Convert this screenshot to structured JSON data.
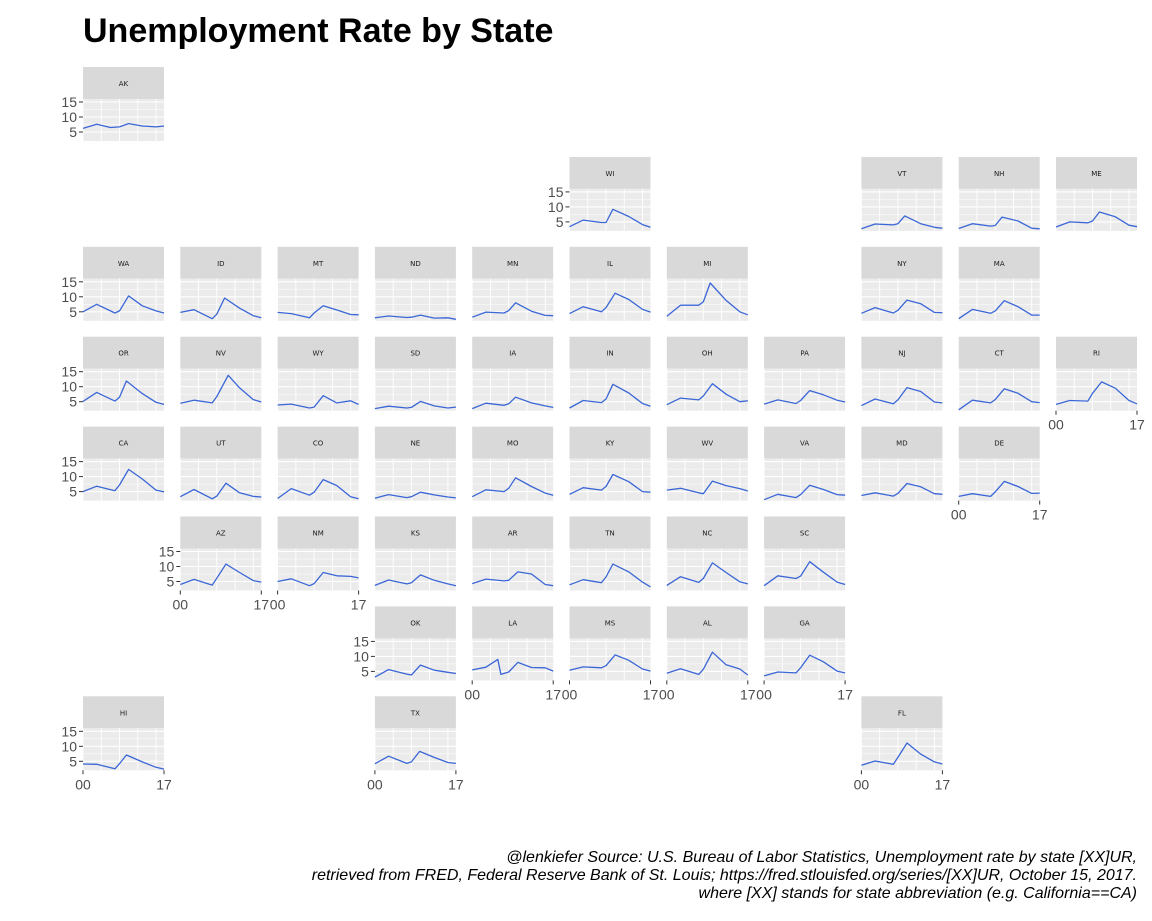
{
  "chart_data": {
    "type": "line",
    "title": "Unemployment Rate by State",
    "subtitle": "",
    "xlabel": "",
    "ylabel": "",
    "facet_layout": "geofacet state grid",
    "x_ticks": [
      "00",
      "17"
    ],
    "x_range": [
      2000,
      2017.75
    ],
    "y_ticks": [
      5,
      10,
      15
    ],
    "y_range": [
      2,
      16
    ],
    "grid": true,
    "legend": "none",
    "colors": {
      "line": "#3a66d6",
      "panel_bg": "#ebebeb",
      "strip_bg": "#d9d9d9",
      "grid": "#ffffff",
      "tick_text": "#4d4d4d"
    },
    "states": [
      {
        "abbr": "AK",
        "x": [
          2000,
          2003,
          2006,
          2008,
          2010,
          2013,
          2016,
          2017.75
        ],
        "y": [
          6.2,
          7.6,
          6.5,
          6.7,
          7.8,
          7.0,
          6.7,
          7.0
        ]
      },
      {
        "abbr": "WI",
        "x": [
          2000,
          2003,
          2007,
          2008,
          2009.5,
          2013,
          2016,
          2017.75
        ],
        "y": [
          3.4,
          5.6,
          4.8,
          4.8,
          9.2,
          6.8,
          4.1,
          3.2
        ]
      },
      {
        "abbr": "VT",
        "x": [
          2000,
          2003,
          2007,
          2008,
          2009.5,
          2013,
          2016,
          2017.75
        ],
        "y": [
          2.7,
          4.3,
          4.0,
          4.4,
          7.0,
          4.4,
          3.2,
          2.9
        ]
      },
      {
        "abbr": "NH",
        "x": [
          2000,
          2003,
          2007,
          2008,
          2009.5,
          2013,
          2016,
          2017.75
        ],
        "y": [
          2.8,
          4.4,
          3.6,
          3.8,
          6.6,
          5.3,
          2.9,
          2.7
        ]
      },
      {
        "abbr": "ME",
        "x": [
          2000,
          2003,
          2007,
          2008,
          2009.5,
          2013,
          2016,
          2017.75
        ],
        "y": [
          3.3,
          5.0,
          4.7,
          5.3,
          8.3,
          6.7,
          3.9,
          3.4
        ]
      },
      {
        "abbr": "WA",
        "x": [
          2000,
          2003,
          2007,
          2008,
          2010,
          2013,
          2016,
          2017.75
        ],
        "y": [
          5.0,
          7.5,
          4.6,
          5.3,
          10.3,
          7.0,
          5.3,
          4.6
        ]
      },
      {
        "abbr": "ID",
        "x": [
          2000,
          2003,
          2007,
          2008,
          2009.7,
          2013,
          2016,
          2017.75
        ],
        "y": [
          4.8,
          5.7,
          2.7,
          4.2,
          9.6,
          6.2,
          3.7,
          3.0
        ]
      },
      {
        "abbr": "MT",
        "x": [
          2000,
          2003,
          2007,
          2008,
          2010,
          2013,
          2016,
          2017.75
        ],
        "y": [
          4.8,
          4.4,
          3.0,
          4.6,
          7.0,
          5.6,
          4.1,
          4.0
        ]
      },
      {
        "abbr": "ND",
        "x": [
          2000,
          2003,
          2007,
          2008,
          2010,
          2013,
          2016,
          2017.75
        ],
        "y": [
          3.0,
          3.6,
          3.1,
          3.2,
          3.9,
          2.9,
          3.0,
          2.5
        ]
      },
      {
        "abbr": "MN",
        "x": [
          2000,
          2003,
          2007,
          2008,
          2009.5,
          2013,
          2016,
          2017.75
        ],
        "y": [
          3.2,
          4.9,
          4.6,
          5.4,
          8.0,
          5.2,
          3.8,
          3.7
        ]
      },
      {
        "abbr": "IL",
        "x": [
          2000,
          2003,
          2007,
          2008,
          2010,
          2013,
          2016,
          2017.75
        ],
        "y": [
          4.4,
          6.7,
          5.0,
          6.4,
          11.2,
          9.1,
          5.8,
          4.9
        ]
      },
      {
        "abbr": "MI",
        "x": [
          2000,
          2003,
          2007,
          2008,
          2009.5,
          2013,
          2016,
          2017.75
        ],
        "y": [
          3.5,
          7.2,
          7.2,
          8.3,
          14.6,
          8.8,
          5.0,
          4.0
        ]
      },
      {
        "abbr": "NY",
        "x": [
          2000,
          2003,
          2007,
          2008,
          2010,
          2013,
          2016,
          2017.75
        ],
        "y": [
          4.5,
          6.4,
          4.6,
          5.5,
          8.9,
          7.7,
          4.8,
          4.7
        ]
      },
      {
        "abbr": "MA",
        "x": [
          2000,
          2003,
          2007,
          2008,
          2010,
          2013,
          2016,
          2017.75
        ],
        "y": [
          2.7,
          5.8,
          4.5,
          5.3,
          8.7,
          6.7,
          3.9,
          3.9
        ]
      },
      {
        "abbr": "OR",
        "x": [
          2000,
          2003,
          2007,
          2008,
          2009.5,
          2013,
          2016,
          2017.75
        ],
        "y": [
          5.1,
          8.1,
          5.2,
          6.5,
          11.9,
          7.7,
          4.8,
          4.1
        ]
      },
      {
        "abbr": "NV",
        "x": [
          2000,
          2003,
          2007,
          2008,
          2010.5,
          2013,
          2016,
          2017.75
        ],
        "y": [
          4.5,
          5.5,
          4.6,
          6.7,
          13.8,
          9.6,
          5.7,
          4.9
        ]
      },
      {
        "abbr": "WY",
        "x": [
          2000,
          2003,
          2007,
          2008,
          2010,
          2013,
          2016,
          2017.75
        ],
        "y": [
          3.9,
          4.2,
          2.9,
          3.2,
          7.0,
          4.6,
          5.3,
          4.1
        ]
      },
      {
        "abbr": "SD",
        "x": [
          2000,
          2003,
          2007,
          2008,
          2010,
          2013,
          2016,
          2017.75
        ],
        "y": [
          2.7,
          3.5,
          2.9,
          3.1,
          5.1,
          3.6,
          2.9,
          3.2
        ]
      },
      {
        "abbr": "IA",
        "x": [
          2000,
          2003,
          2007,
          2008,
          2009.5,
          2013,
          2016,
          2017.75
        ],
        "y": [
          2.7,
          4.5,
          3.8,
          4.3,
          6.5,
          4.6,
          3.6,
          3.1
        ]
      },
      {
        "abbr": "IN",
        "x": [
          2000,
          2003,
          2007,
          2008,
          2009.5,
          2013,
          2016,
          2017.75
        ],
        "y": [
          2.9,
          5.4,
          4.7,
          5.9,
          10.8,
          7.9,
          4.4,
          3.5
        ]
      },
      {
        "abbr": "OH",
        "x": [
          2000,
          2003,
          2007,
          2008,
          2010,
          2013,
          2016,
          2017.75
        ],
        "y": [
          4.0,
          6.2,
          5.6,
          6.9,
          11.0,
          7.5,
          5.0,
          5.3
        ]
      },
      {
        "abbr": "PA",
        "x": [
          2000,
          2003,
          2007,
          2008,
          2010,
          2013,
          2016,
          2017.75
        ],
        "y": [
          4.2,
          5.6,
          4.4,
          5.4,
          8.7,
          7.3,
          5.5,
          4.9
        ]
      },
      {
        "abbr": "NJ",
        "x": [
          2000,
          2003,
          2007,
          2008,
          2010,
          2013,
          2016,
          2017.75
        ],
        "y": [
          3.7,
          5.9,
          4.3,
          5.6,
          9.7,
          8.4,
          4.9,
          4.6
        ]
      },
      {
        "abbr": "CT",
        "x": [
          2000,
          2003,
          2007,
          2008,
          2010,
          2013,
          2016,
          2017.75
        ],
        "y": [
          2.3,
          5.5,
          4.6,
          5.7,
          9.3,
          7.8,
          5.0,
          4.7
        ]
      },
      {
        "abbr": "RI",
        "x": [
          2000,
          2003,
          2007,
          2008,
          2010,
          2013,
          2016,
          2017.75
        ],
        "y": [
          4.1,
          5.4,
          5.2,
          7.8,
          11.6,
          9.5,
          5.4,
          4.3
        ]
      },
      {
        "abbr": "CA",
        "x": [
          2000,
          2003,
          2007,
          2008,
          2010,
          2013,
          2016,
          2017.75
        ],
        "y": [
          5.0,
          6.8,
          5.3,
          7.2,
          12.4,
          9.2,
          5.5,
          4.9
        ]
      },
      {
        "abbr": "UT",
        "x": [
          2000,
          2003,
          2007,
          2008,
          2010,
          2013,
          2016,
          2017.75
        ],
        "y": [
          3.3,
          5.7,
          2.6,
          3.5,
          7.8,
          4.6,
          3.4,
          3.2
        ]
      },
      {
        "abbr": "CO",
        "x": [
          2000,
          2003,
          2007,
          2008,
          2010,
          2013,
          2016,
          2017.75
        ],
        "y": [
          2.7,
          6.0,
          3.8,
          4.8,
          9.0,
          7.0,
          3.3,
          2.6
        ]
      },
      {
        "abbr": "NE",
        "x": [
          2000,
          2003,
          2007,
          2008,
          2010,
          2013,
          2016,
          2017.75
        ],
        "y": [
          2.8,
          4.0,
          3.0,
          3.3,
          4.8,
          3.9,
          3.2,
          2.9
        ]
      },
      {
        "abbr": "MO",
        "x": [
          2000,
          2003,
          2007,
          2008,
          2009.5,
          2013,
          2016,
          2017.75
        ],
        "y": [
          3.3,
          5.6,
          5.0,
          6.1,
          9.6,
          6.7,
          4.5,
          3.8
        ]
      },
      {
        "abbr": "KY",
        "x": [
          2000,
          2003,
          2007,
          2008,
          2009.5,
          2013,
          2016,
          2017.75
        ],
        "y": [
          4.1,
          6.3,
          5.5,
          6.7,
          10.7,
          8.3,
          5.0,
          4.8
        ]
      },
      {
        "abbr": "WV",
        "x": [
          2000,
          2003,
          2007,
          2008,
          2010,
          2013,
          2016,
          2017.75
        ],
        "y": [
          5.5,
          6.1,
          4.6,
          4.3,
          8.5,
          7.0,
          6.0,
          5.2
        ]
      },
      {
        "abbr": "VA",
        "x": [
          2000,
          2003,
          2007,
          2008,
          2010,
          2013,
          2016,
          2017.75
        ],
        "y": [
          2.3,
          4.1,
          3.0,
          4.0,
          7.1,
          5.7,
          4.0,
          3.8
        ]
      },
      {
        "abbr": "MD",
        "x": [
          2000,
          2003,
          2007,
          2008,
          2010,
          2013,
          2016,
          2017.75
        ],
        "y": [
          3.7,
          4.6,
          3.5,
          4.4,
          7.7,
          6.6,
          4.3,
          4.1
        ]
      },
      {
        "abbr": "DE",
        "x": [
          2000,
          2003,
          2007,
          2008,
          2010,
          2013,
          2016,
          2017.75
        ],
        "y": [
          3.4,
          4.3,
          3.4,
          4.9,
          8.4,
          6.7,
          4.4,
          4.5
        ]
      },
      {
        "abbr": "AZ",
        "x": [
          2000,
          2003,
          2007,
          2008,
          2010,
          2013,
          2016,
          2017.75
        ],
        "y": [
          4.0,
          5.7,
          3.8,
          6.1,
          10.8,
          8.0,
          5.3,
          4.8
        ]
      },
      {
        "abbr": "NM",
        "x": [
          2000,
          2003,
          2007,
          2008,
          2010,
          2013,
          2016,
          2017.75
        ],
        "y": [
          5.0,
          5.9,
          3.6,
          4.3,
          8.0,
          6.9,
          6.7,
          6.2
        ]
      },
      {
        "abbr": "KS",
        "x": [
          2000,
          2003,
          2007,
          2008,
          2010,
          2013,
          2016,
          2017.75
        ],
        "y": [
          3.7,
          5.5,
          4.2,
          4.6,
          7.2,
          5.4,
          4.2,
          3.6
        ]
      },
      {
        "abbr": "AR",
        "x": [
          2000,
          2003,
          2007,
          2008,
          2010,
          2013,
          2016,
          2017.75
        ],
        "y": [
          4.3,
          5.8,
          5.2,
          5.4,
          8.2,
          7.5,
          4.0,
          3.6
        ]
      },
      {
        "abbr": "TN",
        "x": [
          2000,
          2003,
          2007,
          2008,
          2009.5,
          2013,
          2016,
          2017.75
        ],
        "y": [
          3.9,
          5.6,
          4.6,
          6.5,
          10.8,
          8.2,
          4.8,
          3.2
        ]
      },
      {
        "abbr": "NC",
        "x": [
          2000,
          2003,
          2007,
          2008,
          2010,
          2013,
          2016,
          2017.75
        ],
        "y": [
          3.7,
          6.6,
          4.7,
          6.0,
          11.2,
          8.0,
          4.9,
          4.2
        ]
      },
      {
        "abbr": "SC",
        "x": [
          2000,
          2003,
          2007,
          2008,
          2010,
          2013,
          2016,
          2017.75
        ],
        "y": [
          3.6,
          6.9,
          6.0,
          6.8,
          11.6,
          8.1,
          4.8,
          4.0
        ]
      },
      {
        "abbr": "OK",
        "x": [
          2000,
          2003,
          2007,
          2008,
          2010,
          2013,
          2016,
          2017.75
        ],
        "y": [
          3.1,
          5.6,
          4.1,
          3.8,
          7.1,
          5.4,
          4.7,
          4.3
        ]
      },
      {
        "abbr": "LA",
        "x": [
          2000,
          2003,
          2005.6,
          2006.3,
          2008,
          2010,
          2013,
          2016,
          2017.75
        ],
        "y": [
          5.5,
          6.4,
          9.0,
          4.0,
          4.8,
          8.0,
          6.3,
          6.2,
          5.1
        ]
      },
      {
        "abbr": "MS",
        "x": [
          2000,
          2003,
          2007,
          2008,
          2010,
          2013,
          2016,
          2017.75
        ],
        "y": [
          5.4,
          6.5,
          6.2,
          6.9,
          10.5,
          8.7,
          5.8,
          5.1
        ]
      },
      {
        "abbr": "AL",
        "x": [
          2000,
          2003,
          2007,
          2008,
          2010,
          2013,
          2016,
          2017.75
        ],
        "y": [
          4.4,
          5.9,
          4.0,
          5.7,
          11.4,
          7.2,
          5.8,
          3.8
        ]
      },
      {
        "abbr": "GA",
        "x": [
          2000,
          2003,
          2007,
          2008,
          2010,
          2013,
          2016,
          2017.75
        ],
        "y": [
          3.5,
          4.8,
          4.5,
          6.2,
          10.4,
          8.2,
          5.1,
          4.5
        ]
      },
      {
        "abbr": "HI",
        "x": [
          2000,
          2003,
          2007,
          2008,
          2009.5,
          2013,
          2016,
          2017.75
        ],
        "y": [
          4.1,
          4.0,
          2.5,
          4.2,
          7.1,
          4.8,
          3.0,
          2.4
        ]
      },
      {
        "abbr": "TX",
        "x": [
          2000,
          2003,
          2007,
          2008,
          2009.8,
          2013,
          2016,
          2017.75
        ],
        "y": [
          4.2,
          6.7,
          4.3,
          4.8,
          8.3,
          6.3,
          4.6,
          4.3
        ]
      },
      {
        "abbr": "FL",
        "x": [
          2000,
          2003,
          2007,
          2008,
          2010,
          2013,
          2016,
          2017.75
        ],
        "y": [
          3.7,
          5.1,
          4.0,
          6.3,
          11.1,
          7.4,
          4.8,
          4.1
        ]
      }
    ]
  },
  "caption": {
    "line1": "@lenkiefer Source: U.S. Bureau of Labor Statistics, Unemployment rate by state [XX]UR,",
    "line2": "retrieved from FRED, Federal Reserve Bank of St. Louis; https://fred.stlouisfed.org/series/[XX]UR, October 15, 2017.",
    "line3": "where [XX] stands for state abbreviation (e.g. California==CA)"
  }
}
